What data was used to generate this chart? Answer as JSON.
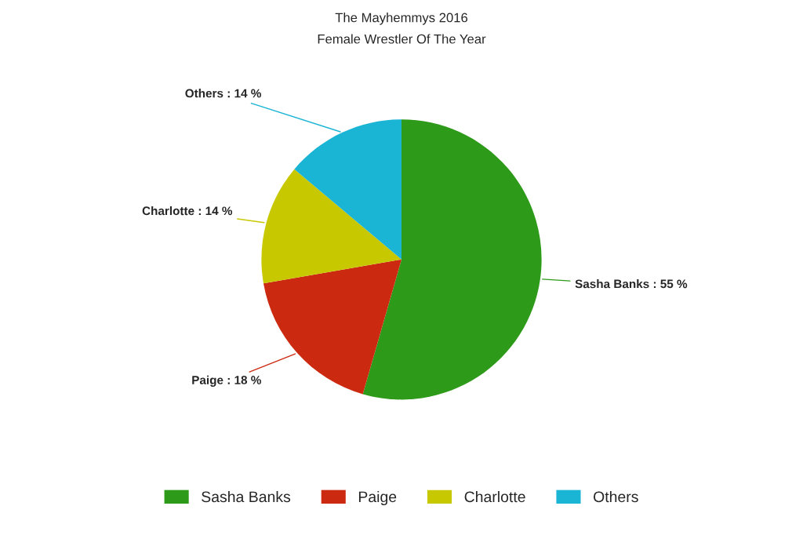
{
  "chart_data": {
    "type": "pie",
    "title": "The Mayhemmys 2016",
    "subtitle": "Female Wrestler Of The Year",
    "categories": [
      "Sasha Banks",
      "Paige",
      "Charlotte",
      "Others"
    ],
    "values": [
      55,
      18,
      14,
      14
    ],
    "colors": [
      "#2e9a1a",
      "#cc2a10",
      "#c8c800",
      "#1ab4d4"
    ],
    "value_labels": [
      "Sasha Banks : 55 %",
      "Paige : 18 %",
      "Charlotte : 14 %",
      "Others : 14 %"
    ],
    "legend": "bottom"
  }
}
